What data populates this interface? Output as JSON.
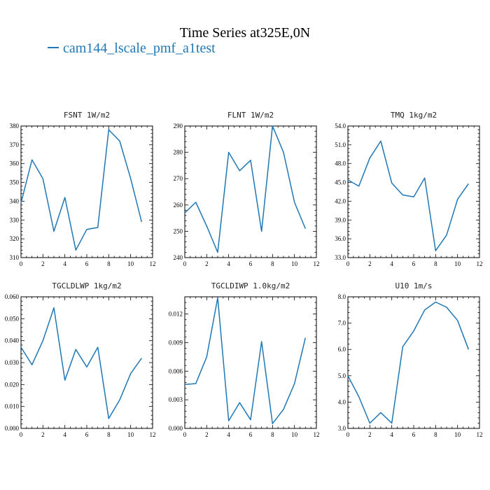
{
  "title": "Time Series at325E,0N",
  "legend": {
    "label": "cam144_lscale_pmf_a1test",
    "color": "#1f77b4"
  },
  "chart_data": [
    {
      "type": "line",
      "title": "FSNT  1W/m2",
      "x": [
        0,
        1,
        2,
        3,
        4,
        5,
        6,
        7,
        8,
        9,
        10,
        11
      ],
      "series": [
        {
          "values": [
            339,
            362,
            352,
            324,
            342,
            314,
            325,
            326,
            378,
            372,
            352,
            329
          ]
        }
      ],
      "xlim": [
        0,
        12
      ],
      "ylim": [
        310,
        380
      ],
      "xticks": [
        0,
        2,
        4,
        6,
        8,
        10,
        12
      ],
      "yticks": [
        310,
        320,
        330,
        340,
        350,
        360,
        370,
        380
      ],
      "yticklabels": [
        "310",
        "320",
        "330",
        "340",
        "350",
        "360",
        "370",
        "380"
      ]
    },
    {
      "type": "line",
      "title": "FLNT  1W/m2",
      "x": [
        0,
        1,
        2,
        3,
        4,
        5,
        6,
        7,
        8,
        9,
        10,
        11
      ],
      "series": [
        {
          "values": [
            257,
            261,
            252,
            242,
            280,
            273,
            277,
            250,
            290,
            280,
            261,
            251
          ]
        }
      ],
      "xlim": [
        0,
        12
      ],
      "ylim": [
        240,
        290
      ],
      "xticks": [
        0,
        2,
        4,
        6,
        8,
        10,
        12
      ],
      "yticks": [
        240,
        250,
        260,
        270,
        280,
        290
      ],
      "yticklabels": [
        "240",
        "250",
        "260",
        "270",
        "280",
        "290"
      ]
    },
    {
      "type": "line",
      "title": "TMQ  1kg/m2",
      "x": [
        0,
        1,
        2,
        3,
        4,
        5,
        6,
        7,
        8,
        9,
        10,
        11
      ],
      "series": [
        {
          "values": [
            45.4,
            44.4,
            48.9,
            51.6,
            44.9,
            43.0,
            42.7,
            45.7,
            34.1,
            36.6,
            42.3,
            44.8
          ]
        }
      ],
      "xlim": [
        0,
        12
      ],
      "ylim": [
        33,
        54
      ],
      "xticks": [
        0,
        2,
        4,
        6,
        8,
        10,
        12
      ],
      "yticks": [
        33,
        36,
        39,
        42,
        45,
        48,
        51,
        54
      ],
      "yticklabels": [
        "33.0",
        "36.0",
        "39.0",
        "42.0",
        "45.0",
        "48.0",
        "51.0",
        "54.0"
      ]
    },
    {
      "type": "line",
      "title": "TGCLDLWP  1kg/m2",
      "x": [
        0,
        1,
        2,
        3,
        4,
        5,
        6,
        7,
        8,
        9,
        10,
        11
      ],
      "series": [
        {
          "values": [
            0.037,
            0.029,
            0.04,
            0.055,
            0.022,
            0.036,
            0.028,
            0.037,
            0.0045,
            0.013,
            0.025,
            0.032
          ]
        }
      ],
      "xlim": [
        0,
        12
      ],
      "ylim": [
        0,
        0.06
      ],
      "xticks": [
        0,
        2,
        4,
        6,
        8,
        10,
        12
      ],
      "yticks": [
        0,
        0.01,
        0.02,
        0.03,
        0.04,
        0.05,
        0.06
      ],
      "yticklabels": [
        "0.000",
        "0.010",
        "0.020",
        "0.030",
        "0.040",
        "0.050",
        "0.060"
      ]
    },
    {
      "type": "line",
      "title": "TGCLDIWP  1.0kg/m2",
      "x": [
        0,
        1,
        2,
        3,
        4,
        5,
        6,
        7,
        8,
        9,
        10,
        11
      ],
      "series": [
        {
          "values": [
            0.0046,
            0.0047,
            0.0075,
            0.0137,
            0.0008,
            0.0027,
            0.0009,
            0.0091,
            0.0005,
            0.002,
            0.0047,
            0.0095
          ]
        }
      ],
      "xlim": [
        0,
        12
      ],
      "ylim": [
        0,
        0.0138
      ],
      "xticks": [
        0,
        2,
        4,
        6,
        8,
        10,
        12
      ],
      "yticks": [
        0,
        0.003,
        0.006,
        0.009,
        0.012
      ],
      "yticklabels": [
        "0.000",
        "0.003",
        "0.006",
        "0.009",
        "0.012"
      ]
    },
    {
      "type": "line",
      "title": "U10  1m/s",
      "x": [
        0,
        1,
        2,
        3,
        4,
        5,
        6,
        7,
        8,
        9,
        10,
        11
      ],
      "series": [
        {
          "values": [
            5.0,
            4.2,
            3.2,
            3.6,
            3.2,
            6.1,
            6.7,
            7.5,
            7.8,
            7.6,
            7.1,
            6.0
          ]
        }
      ],
      "xlim": [
        0,
        12
      ],
      "ylim": [
        3,
        8
      ],
      "xticks": [
        0,
        2,
        4,
        6,
        8,
        10,
        12
      ],
      "yticks": [
        3,
        4,
        5,
        6,
        7,
        8
      ],
      "yticklabels": [
        "3.0",
        "4.0",
        "5.0",
        "6.0",
        "7.0",
        "8.0"
      ]
    }
  ]
}
